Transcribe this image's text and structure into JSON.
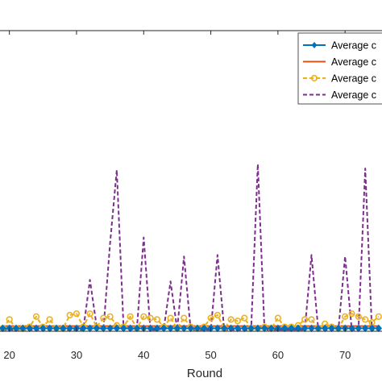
{
  "chart_data": {
    "type": "line",
    "xlabel": "Round",
    "xlim": [
      18.6,
      75.5
    ],
    "ylim": [
      0,
      20.5
    ],
    "xticks": [
      20,
      30,
      40,
      50,
      60,
      70
    ],
    "xtick_labels": [
      "20",
      "30",
      "40",
      "50",
      "60",
      "70"
    ],
    "grid": false,
    "legend_position": "top-right",
    "x": [
      19,
      20,
      21,
      22,
      23,
      24,
      25,
      26,
      27,
      28,
      29,
      30,
      31,
      32,
      33,
      34,
      35,
      36,
      37,
      38,
      39,
      40,
      41,
      42,
      43,
      44,
      45,
      46,
      47,
      48,
      49,
      50,
      51,
      52,
      53,
      54,
      55,
      56,
      57,
      58,
      59,
      60,
      61,
      62,
      63,
      64,
      65,
      66,
      67,
      68,
      69,
      70,
      71,
      72,
      73,
      74,
      75
    ],
    "series": [
      {
        "name": "Average c",
        "color": "#0072BD",
        "line": "solid",
        "marker": "diamond",
        "values": [
          0.2,
          0.2,
          0.2,
          0.2,
          0.2,
          0.2,
          0.2,
          0.2,
          0.2,
          0.2,
          0.2,
          0.2,
          0.2,
          0.2,
          0.2,
          0.2,
          0.2,
          0.2,
          0.2,
          0.2,
          0.2,
          0.2,
          0.2,
          0.2,
          0.2,
          0.2,
          0.2,
          0.2,
          0.2,
          0.2,
          0.2,
          0.2,
          0.2,
          0.2,
          0.2,
          0.2,
          0.2,
          0.2,
          0.2,
          0.2,
          0.2,
          0.2,
          0.2,
          0.2,
          0.2,
          0.2,
          0.2,
          0.2,
          0.2,
          0.2,
          0.2,
          0.2,
          0.2,
          0.2,
          0.2,
          0.2,
          0.2
        ]
      },
      {
        "name": "Average c",
        "color": "#D95319",
        "line": "solid",
        "marker": "none",
        "values": [
          0.35,
          0.35,
          0.35,
          0.35,
          0.35,
          0.35,
          0.35,
          0.35,
          0.35,
          0.35,
          0.35,
          0.35,
          0.35,
          0.35,
          0.35,
          0.35,
          0.35,
          0.35,
          0.35,
          0.35,
          0.35,
          0.35,
          0.35,
          0.35,
          0.35,
          0.35,
          0.35,
          0.35,
          0.35,
          0.35,
          0.35,
          0.35,
          0.35,
          0.35,
          0.35,
          0.35,
          0.35,
          0.35,
          0.35,
          0.35,
          0.35,
          0.35,
          0.35,
          0.35,
          0.35,
          0.35,
          0.35,
          0.35,
          0.35,
          0.35,
          0.35,
          0.35,
          0.35,
          0.35,
          0.35,
          0.35,
          0.35
        ]
      },
      {
        "name": "Average c",
        "color": "#EDB120",
        "line": "dashed",
        "marker": "circle",
        "values": [
          0.2,
          0.8,
          0.2,
          0.2,
          0.3,
          1.0,
          0.3,
          0.8,
          0.2,
          0.2,
          1.1,
          1.2,
          0.3,
          1.2,
          0.3,
          0.9,
          1.0,
          0.4,
          0.3,
          1.0,
          0.2,
          1.0,
          0.9,
          0.8,
          0.3,
          0.9,
          0.2,
          0.9,
          0.3,
          0.2,
          0.3,
          0.9,
          1.1,
          0.2,
          0.8,
          0.7,
          0.9,
          0.2,
          0.2,
          0.3,
          0.2,
          0.9,
          0.3,
          0.3,
          0.4,
          0.8,
          0.8,
          0.2,
          0.5,
          0.3,
          0.2,
          1.0,
          1.2,
          1.0,
          0.8,
          0.6,
          1.0
        ]
      },
      {
        "name": "Average c",
        "color": "#7E2F8E",
        "line": "dashed",
        "marker": "none",
        "values": [
          0.1,
          0.1,
          0.1,
          0.1,
          0.1,
          0.1,
          0.1,
          0.1,
          0.1,
          0.1,
          0.1,
          0.1,
          0.1,
          3.5,
          0.3,
          0.1,
          6.0,
          11.0,
          0.3,
          0.1,
          0.2,
          6.4,
          0.1,
          0.1,
          0.2,
          3.4,
          0.1,
          5.1,
          0.1,
          0.1,
          0.1,
          0.1,
          5.2,
          0.1,
          0.1,
          0.1,
          0.1,
          0.1,
          11.4,
          0.1,
          0.1,
          0.1,
          0.1,
          0.1,
          0.1,
          0.1,
          5.2,
          0.1,
          0.1,
          0.1,
          0.1,
          5.1,
          0.1,
          0.1,
          11.1,
          0.1,
          0.1
        ]
      }
    ]
  }
}
